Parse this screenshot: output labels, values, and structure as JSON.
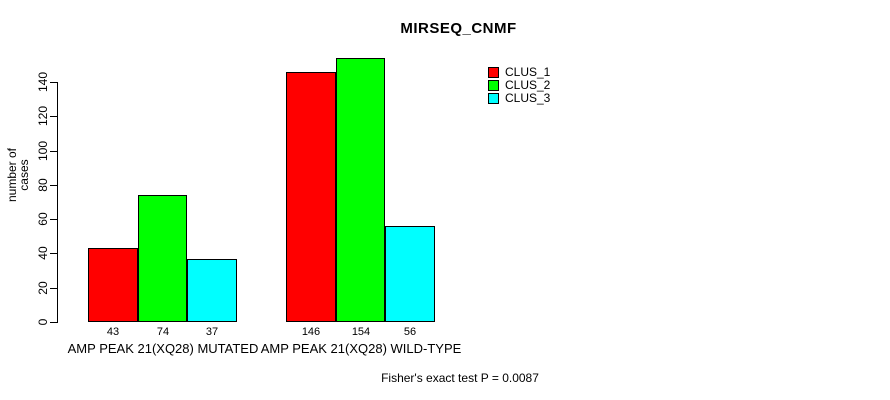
{
  "page": {
    "background": "#ffffff"
  },
  "chart_data": {
    "type": "bar",
    "title": "MIRSEQ_CNMF",
    "xlabel": "",
    "ylabel": "number of cases",
    "categories": [
      "AMP PEAK 21(XQ28) MUTATED",
      "AMP PEAK 21(XQ28) WILD-TYPE"
    ],
    "series": [
      {
        "name": "CLUS_1",
        "color": "#ff0000",
        "values": [
          43,
          146
        ]
      },
      {
        "name": "CLUS_2",
        "color": "#00ff00",
        "values": [
          74,
          154
        ]
      },
      {
        "name": "CLUS_3",
        "color": "#00ffff",
        "values": [
          37,
          56
        ]
      }
    ],
    "bar_value_labels": [
      [
        "43",
        "74",
        "37"
      ],
      [
        "146",
        "154",
        "56"
      ]
    ],
    "yticks": [
      0,
      20,
      40,
      60,
      80,
      100,
      120,
      140
    ],
    "ylim": [
      0,
      160
    ],
    "grid": false,
    "legend_position": "top-right",
    "legend_items": [
      {
        "label": "CLUS_1",
        "color": "#ff0000"
      },
      {
        "label": "CLUS_2",
        "color": "#00ff00"
      },
      {
        "label": "CLUS_3",
        "color": "#00ffff"
      }
    ],
    "annotation": "Fisher's exact test P = 0.0087",
    "axis_color": "#000000",
    "bar_border_color": "#000000"
  }
}
